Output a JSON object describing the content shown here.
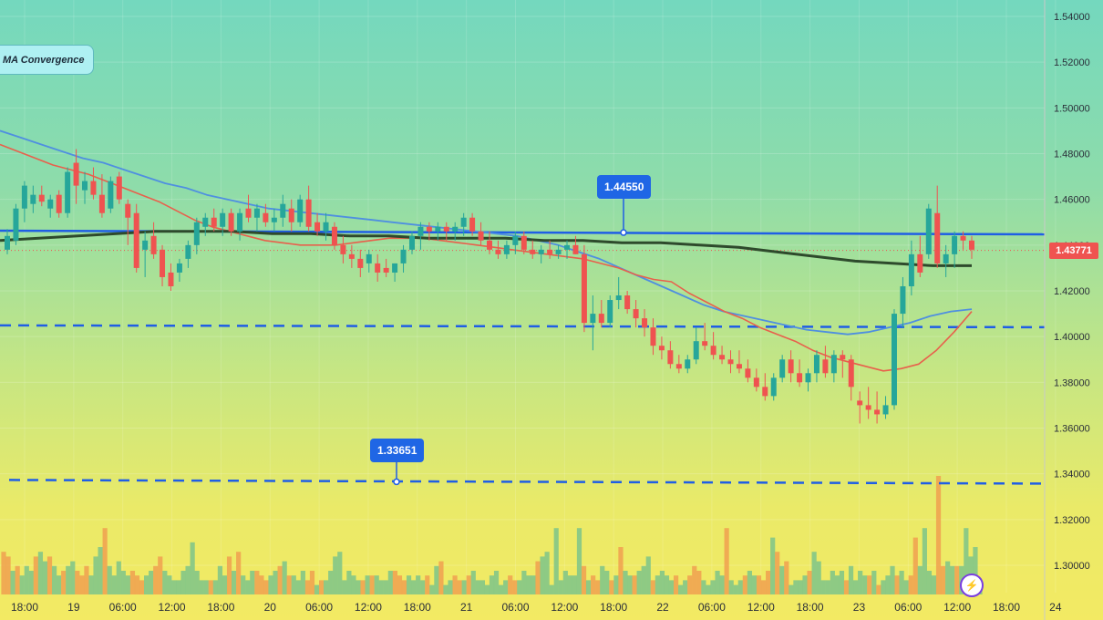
{
  "legend": {
    "label": "MA Convergence"
  },
  "markers": {
    "upper_level_label": "1.44550",
    "lower_level_label": "1.33651",
    "last_price_label": "1.43771"
  },
  "colors": {
    "bull": "#26a69a",
    "bear": "#ef5350",
    "ema_fast": "#e8604c",
    "ema_mid": "#4f8fe0",
    "ema_slow": "#2e4a2c",
    "level": "#1f5ee5",
    "vol_bull": "#7cc48a",
    "vol_bear": "#f0a050"
  },
  "icons": {
    "replay": "lightning-bolt-icon"
  },
  "chart_data": {
    "type": "candlestick",
    "title": "",
    "ylim": [
      1.285,
      1.545
    ],
    "yticks": [
      "1.54000",
      "1.52000",
      "1.50000",
      "1.48000",
      "1.46000",
      "1.44000",
      "1.42000",
      "1.40000",
      "1.38000",
      "1.36000",
      "1.34000",
      "1.32000",
      "1.30000"
    ],
    "xticks": [
      "18:00",
      "19",
      "06:00",
      "12:00",
      "18:00",
      "20",
      "06:00",
      "12:00",
      "18:00",
      "21",
      "06:00",
      "12:00",
      "18:00",
      "22",
      "06:00",
      "12:00",
      "18:00",
      "23",
      "06:00",
      "12:00",
      "18:00",
      "24"
    ],
    "horizontal_levels": [
      {
        "value": 1.4455,
        "style": "solid"
      },
      {
        "value": 1.4045,
        "style": "dashed"
      },
      {
        "value": 1.33651,
        "style": "dashed"
      }
    ],
    "last_price": 1.43771,
    "candles": [
      [
        1.438,
        1.447,
        1.436,
        1.444
      ],
      [
        1.442,
        1.458,
        1.44,
        1.456
      ],
      [
        1.456,
        1.468,
        1.45,
        1.466
      ],
      [
        1.458,
        1.466,
        1.454,
        1.462
      ],
      [
        1.462,
        1.466,
        1.457,
        1.459
      ],
      [
        1.456,
        1.462,
        1.452,
        1.46
      ],
      [
        1.462,
        1.464,
        1.452,
        1.454
      ],
      [
        1.454,
        1.474,
        1.452,
        1.472
      ],
      [
        1.476,
        1.482,
        1.458,
        1.466
      ],
      [
        1.464,
        1.472,
        1.458,
        1.468
      ],
      [
        1.468,
        1.474,
        1.46,
        1.462
      ],
      [
        1.462,
        1.471,
        1.452,
        1.454
      ],
      [
        1.456,
        1.47,
        1.454,
        1.468
      ],
      [
        1.47,
        1.472,
        1.458,
        1.46
      ],
      [
        1.458,
        1.46,
        1.44,
        1.452
      ],
      [
        1.454,
        1.458,
        1.428,
        1.43
      ],
      [
        1.438,
        1.446,
        1.426,
        1.442
      ],
      [
        1.444,
        1.45,
        1.434,
        1.436
      ],
      [
        1.438,
        1.44,
        1.422,
        1.426
      ],
      [
        1.428,
        1.432,
        1.42,
        1.422
      ],
      [
        1.428,
        1.434,
        1.424,
        1.432
      ],
      [
        1.434,
        1.442,
        1.43,
        1.44
      ],
      [
        1.44,
        1.452,
        1.436,
        1.45
      ],
      [
        1.448,
        1.454,
        1.444,
        1.452
      ],
      [
        1.452,
        1.456,
        1.446,
        1.448
      ],
      [
        1.448,
        1.456,
        1.444,
        1.454
      ],
      [
        1.454,
        1.456,
        1.444,
        1.446
      ],
      [
        1.446,
        1.456,
        1.442,
        1.454
      ],
      [
        1.456,
        1.462,
        1.45,
        1.452
      ],
      [
        1.452,
        1.458,
        1.446,
        1.456
      ],
      [
        1.454,
        1.458,
        1.448,
        1.45
      ],
      [
        1.45,
        1.456,
        1.446,
        1.452
      ],
      [
        1.452,
        1.462,
        1.448,
        1.458
      ],
      [
        1.456,
        1.46,
        1.446,
        1.45
      ],
      [
        1.45,
        1.462,
        1.448,
        1.46
      ],
      [
        1.46,
        1.466,
        1.446,
        1.448
      ],
      [
        1.45,
        1.454,
        1.444,
        1.446
      ],
      [
        1.446,
        1.454,
        1.442,
        1.45
      ],
      [
        1.448,
        1.45,
        1.438,
        1.44
      ],
      [
        1.44,
        1.444,
        1.432,
        1.436
      ],
      [
        1.436,
        1.44,
        1.43,
        1.434
      ],
      [
        1.434,
        1.438,
        1.426,
        1.43
      ],
      [
        1.432,
        1.438,
        1.428,
        1.436
      ],
      [
        1.432,
        1.436,
        1.424,
        1.428
      ],
      [
        1.43,
        1.434,
        1.426,
        1.428
      ],
      [
        1.428,
        1.432,
        1.424,
        1.432
      ],
      [
        1.432,
        1.44,
        1.428,
        1.438
      ],
      [
        1.438,
        1.446,
        1.436,
        1.444
      ],
      [
        1.444,
        1.45,
        1.438,
        1.448
      ],
      [
        1.448,
        1.45,
        1.442,
        1.446
      ],
      [
        1.446,
        1.45,
        1.442,
        1.448
      ],
      [
        1.448,
        1.45,
        1.442,
        1.446
      ],
      [
        1.446,
        1.45,
        1.442,
        1.448
      ],
      [
        1.448,
        1.454,
        1.444,
        1.452
      ],
      [
        1.452,
        1.454,
        1.444,
        1.446
      ],
      [
        1.446,
        1.45,
        1.44,
        1.442
      ],
      [
        1.442,
        1.446,
        1.436,
        1.438
      ],
      [
        1.438,
        1.442,
        1.434,
        1.436
      ],
      [
        1.436,
        1.442,
        1.434,
        1.44
      ],
      [
        1.44,
        1.446,
        1.436,
        1.444
      ],
      [
        1.444,
        1.446,
        1.436,
        1.438
      ],
      [
        1.438,
        1.442,
        1.434,
        1.436
      ],
      [
        1.436,
        1.44,
        1.432,
        1.438
      ],
      [
        1.438,
        1.442,
        1.434,
        1.436
      ],
      [
        1.436,
        1.44,
        1.434,
        1.438
      ],
      [
        1.438,
        1.442,
        1.434,
        1.44
      ],
      [
        1.44,
        1.444,
        1.436,
        1.436
      ],
      [
        1.436,
        1.44,
        1.402,
        1.406
      ],
      [
        1.406,
        1.418,
        1.394,
        1.41
      ],
      [
        1.41,
        1.416,
        1.404,
        1.406
      ],
      [
        1.406,
        1.418,
        1.404,
        1.416
      ],
      [
        1.416,
        1.426,
        1.412,
        1.418
      ],
      [
        1.418,
        1.42,
        1.41,
        1.412
      ],
      [
        1.412,
        1.416,
        1.404,
        1.408
      ],
      [
        1.408,
        1.412,
        1.4,
        1.404
      ],
      [
        1.404,
        1.408,
        1.392,
        1.396
      ],
      [
        1.396,
        1.4,
        1.39,
        1.394
      ],
      [
        1.394,
        1.398,
        1.386,
        1.388
      ],
      [
        1.388,
        1.392,
        1.384,
        1.386
      ],
      [
        1.386,
        1.392,
        1.384,
        1.39
      ],
      [
        1.39,
        1.404,
        1.388,
        1.398
      ],
      [
        1.398,
        1.406,
        1.394,
        1.396
      ],
      [
        1.396,
        1.402,
        1.39,
        1.392
      ],
      [
        1.392,
        1.396,
        1.388,
        1.39
      ],
      [
        1.39,
        1.394,
        1.384,
        1.388
      ],
      [
        1.388,
        1.394,
        1.384,
        1.386
      ],
      [
        1.386,
        1.39,
        1.38,
        1.382
      ],
      [
        1.382,
        1.386,
        1.376,
        1.378
      ],
      [
        1.378,
        1.384,
        1.372,
        1.374
      ],
      [
        1.374,
        1.384,
        1.372,
        1.382
      ],
      [
        1.382,
        1.392,
        1.38,
        1.39
      ],
      [
        1.39,
        1.394,
        1.38,
        1.384
      ],
      [
        1.384,
        1.39,
        1.378,
        1.38
      ],
      [
        1.38,
        1.386,
        1.376,
        1.384
      ],
      [
        1.384,
        1.394,
        1.38,
        1.392
      ],
      [
        1.39,
        1.396,
        1.382,
        1.384
      ],
      [
        1.384,
        1.394,
        1.38,
        1.392
      ],
      [
        1.392,
        1.394,
        1.382,
        1.39
      ],
      [
        1.39,
        1.392,
        1.372,
        1.378
      ],
      [
        1.372,
        1.376,
        1.362,
        1.37
      ],
      [
        1.37,
        1.378,
        1.364,
        1.368
      ],
      [
        1.368,
        1.376,
        1.362,
        1.366
      ],
      [
        1.366,
        1.374,
        1.364,
        1.37
      ],
      [
        1.37,
        1.412,
        1.368,
        1.41
      ],
      [
        1.41,
        1.426,
        1.404,
        1.422
      ],
      [
        1.422,
        1.442,
        1.418,
        1.436
      ],
      [
        1.436,
        1.444,
        1.426,
        1.428
      ],
      [
        1.436,
        1.458,
        1.434,
        1.456
      ],
      [
        1.454,
        1.466,
        1.43,
        1.432
      ],
      [
        1.432,
        1.44,
        1.426,
        1.436
      ],
      [
        1.436,
        1.446,
        1.43,
        1.444
      ],
      [
        1.444,
        1.446,
        1.438,
        1.442
      ],
      [
        1.442,
        1.444,
        1.434,
        1.438
      ]
    ],
    "ema_fast": [
      1.484,
      1.481,
      1.478,
      1.475,
      1.473,
      1.471,
      1.468,
      1.465,
      1.462,
      1.459,
      1.455,
      1.451,
      1.448,
      1.446,
      1.444,
      1.442,
      1.441,
      1.44,
      1.44,
      1.44,
      1.441,
      1.442,
      1.443,
      1.443,
      1.443,
      1.442,
      1.441,
      1.44,
      1.439,
      1.438,
      1.437,
      1.436,
      1.435,
      1.434,
      1.432,
      1.43,
      1.427,
      1.425,
      1.424,
      1.419,
      1.415,
      1.411,
      1.408,
      1.404,
      1.401,
      1.398,
      1.394,
      1.391,
      1.389,
      1.387,
      1.385,
      1.386,
      1.388,
      1.394,
      1.402,
      1.411
    ],
    "ema_mid": [
      1.49,
      1.487,
      1.484,
      1.481,
      1.478,
      1.476,
      1.473,
      1.47,
      1.467,
      1.465,
      1.462,
      1.46,
      1.458,
      1.456,
      1.455,
      1.454,
      1.453,
      1.452,
      1.451,
      1.45,
      1.449,
      1.448,
      1.447,
      1.446,
      1.445,
      1.444,
      1.442,
      1.44,
      1.437,
      1.434,
      1.43,
      1.426,
      1.422,
      1.418,
      1.414,
      1.411,
      1.409,
      1.407,
      1.405,
      1.403,
      1.402,
      1.401,
      1.402,
      1.404,
      1.406,
      1.409,
      1.411,
      1.412
    ],
    "ema_slow": [
      1.442,
      1.443,
      1.444,
      1.445,
      1.446,
      1.446,
      1.446,
      1.445,
      1.445,
      1.444,
      1.444,
      1.443,
      1.443,
      1.443,
      1.442,
      1.442,
      1.441,
      1.441,
      1.44,
      1.439,
      1.437,
      1.435,
      1.433,
      1.432,
      1.431,
      1.431
    ],
    "volume": [
      9,
      8,
      5,
      6,
      4,
      6,
      5,
      8,
      9,
      7,
      8,
      6,
      4,
      5,
      6,
      7,
      5,
      4,
      6,
      4,
      8,
      10,
      14,
      6,
      4,
      7,
      5,
      4,
      5,
      4,
      3,
      4,
      5,
      6,
      8,
      5,
      4,
      3,
      3,
      5,
      6,
      11,
      5,
      3,
      3,
      3,
      3,
      6,
      4,
      8,
      5,
      9,
      4,
      3,
      5,
      5,
      4,
      3,
      4,
      5,
      6,
      7,
      4,
      4,
      3,
      5,
      3,
      5,
      2,
      3,
      3,
      5,
      8,
      9,
      3,
      5,
      4,
      3,
      3,
      4,
      4,
      4,
      3,
      3,
      5,
      5,
      4,
      3,
      4,
      3,
      4,
      3,
      4,
      2,
      6,
      7,
      2,
      3,
      4,
      3,
      3,
      4,
      5,
      3,
      3,
      2,
      4,
      5,
      2,
      3,
      4,
      3,
      3,
      5,
      4,
      4,
      7,
      8,
      9,
      2,
      14,
      3,
      5,
      4,
      4,
      14,
      6,
      3,
      4,
      3,
      6,
      5,
      3,
      4,
      10,
      5,
      4,
      4,
      5,
      6,
      8,
      3,
      4,
      5,
      4,
      3,
      4,
      2,
      3,
      4,
      6,
      5,
      3,
      2,
      3,
      5,
      4,
      14,
      3,
      2,
      3,
      4,
      5,
      4,
      4,
      3,
      5,
      12,
      9,
      6,
      7,
      2,
      3,
      3,
      4,
      5,
      9,
      7,
      3,
      3,
      5,
      4,
      5,
      3,
      6,
      3,
      5,
      4,
      4,
      5,
      2,
      3,
      4,
      6,
      4,
      5,
      3,
      4,
      12,
      6,
      14,
      5,
      4,
      25,
      6,
      7,
      6,
      6,
      6,
      14,
      8,
      10,
      3
    ]
  }
}
